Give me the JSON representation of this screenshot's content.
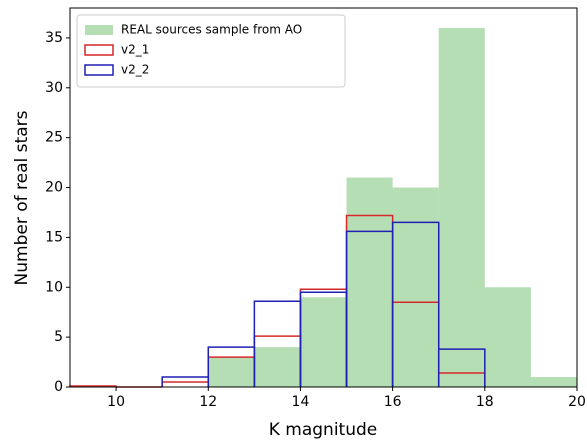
{
  "chart_data": {
    "type": "histogram",
    "xlabel": "K magnitude",
    "ylabel": "Number of real stars",
    "xlim": [
      9,
      20
    ],
    "ylim": [
      0,
      38
    ],
    "xticks": [
      10,
      12,
      14,
      16,
      18,
      20
    ],
    "yticks": [
      0,
      5,
      10,
      15,
      20,
      25,
      30,
      35
    ],
    "legend": "upper left",
    "series": [
      {
        "name": "REAL sources sample from AO",
        "color": "#2ca02c",
        "style": "filled",
        "bins": [
          9,
          10,
          11,
          12,
          13,
          14,
          15,
          16,
          17,
          18,
          19,
          20
        ],
        "values": [
          0,
          0,
          0,
          3,
          4,
          9,
          21,
          20,
          36,
          10,
          1
        ]
      },
      {
        "name": "v2_1",
        "color": "#d62728",
        "style": "step",
        "bins": [
          9,
          10,
          11,
          12,
          13,
          14,
          15,
          16,
          17,
          18
        ],
        "values": [
          0.1,
          0,
          0.5,
          3,
          5.1,
          9.8,
          17.2,
          8.5,
          1.4
        ]
      },
      {
        "name": "v2_2",
        "color": "#1f1fb4",
        "style": "step",
        "bins": [
          11,
          12,
          13,
          14,
          15,
          16,
          17,
          18
        ],
        "values": [
          1,
          4,
          8.6,
          9.5,
          15.6,
          16.5,
          3.8
        ]
      }
    ]
  }
}
